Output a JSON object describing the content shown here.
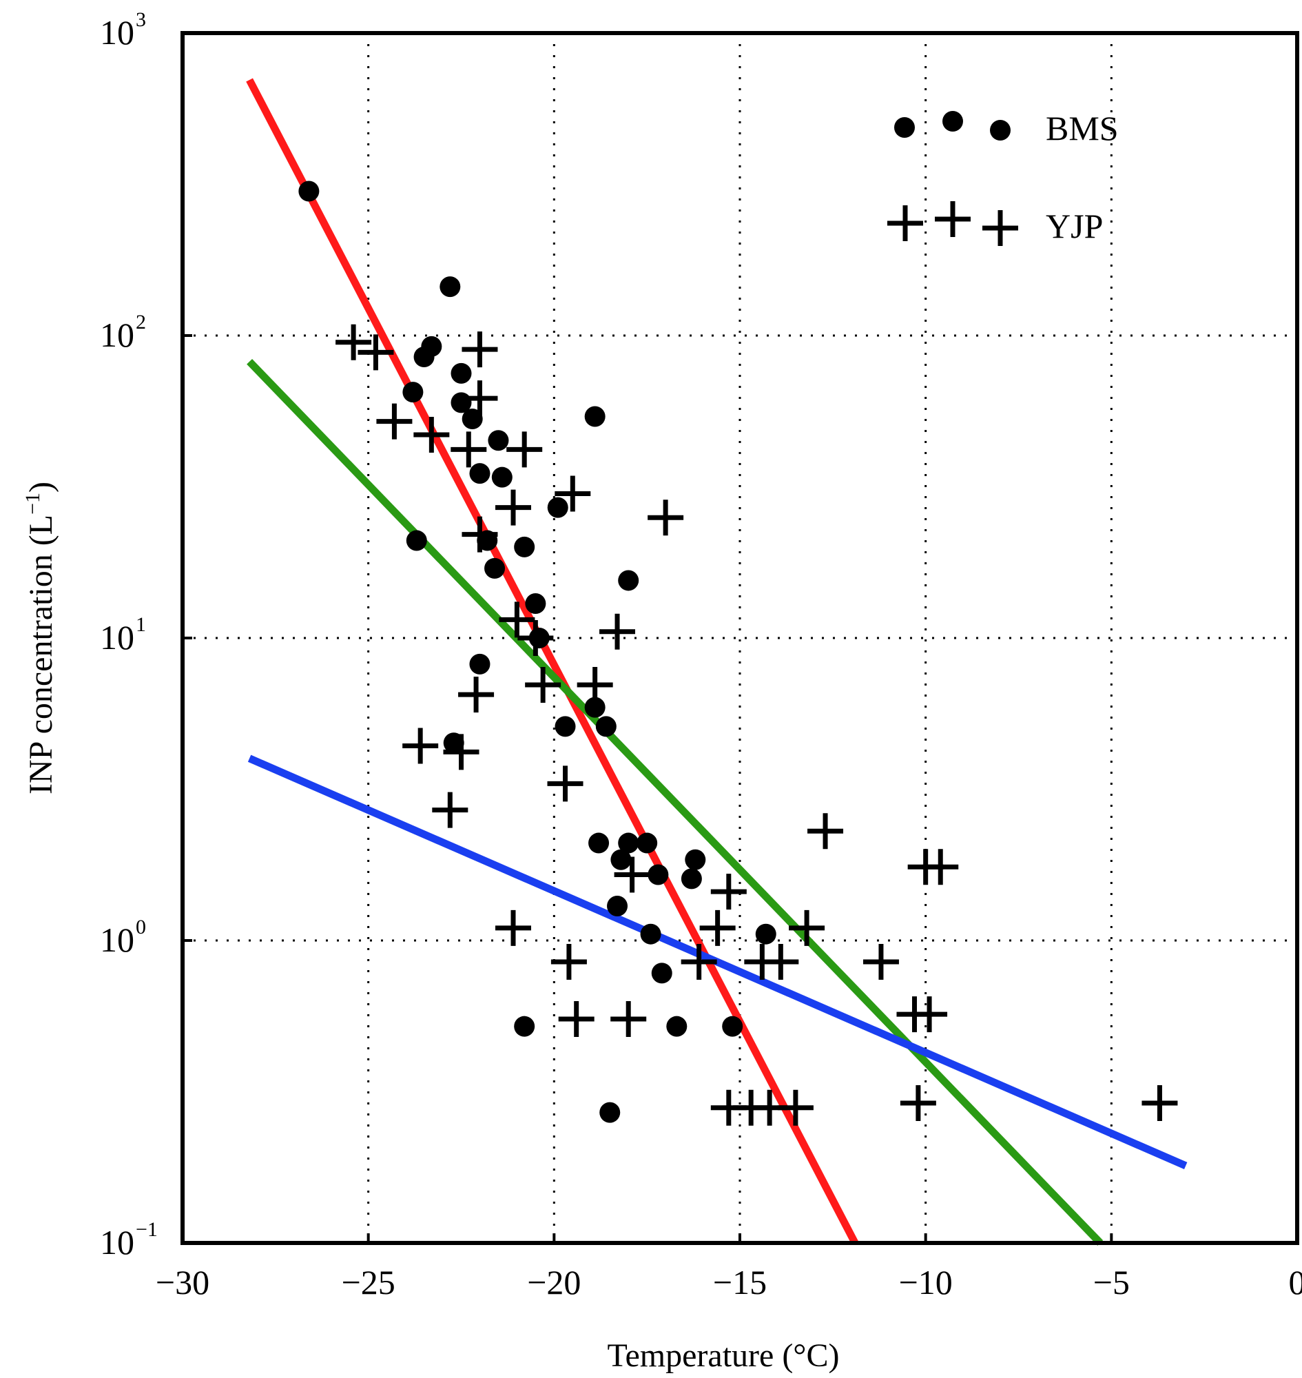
{
  "chart_data": {
    "type": "scatter",
    "xlabel": "Temperature (°C)",
    "ylabel": "INP concentration (L⁻¹)",
    "ylabel_base": "INP concentration (L",
    "ylabel_exp": "−1",
    "ylabel_close": ")",
    "xscale": "linear",
    "yscale": "log",
    "xlim": [
      -30,
      0
    ],
    "ylim": [
      0.1,
      1000
    ],
    "xticks": [
      -30,
      -25,
      -20,
      -15,
      -10,
      -5,
      0
    ],
    "xtick_labels": [
      "−30",
      "−25",
      "−20",
      "−15",
      "−10",
      "−5",
      "0"
    ],
    "yticks": [
      {
        "value": 0.1,
        "base": "10",
        "exp": "−1"
      },
      {
        "value": 1,
        "base": "10",
        "exp": "0"
      },
      {
        "value": 10,
        "base": "10",
        "exp": "1"
      },
      {
        "value": 100,
        "base": "10",
        "exp": "2"
      },
      {
        "value": 1000,
        "base": "10",
        "exp": "3"
      }
    ],
    "grid": "dotted",
    "legend_position": "top-right",
    "series": [
      {
        "name": "BMS",
        "marker": "circle",
        "color": "#000000",
        "points": [
          [
            -26.6,
            300
          ],
          [
            -22.8,
            145
          ],
          [
            -23.3,
            92
          ],
          [
            -23.5,
            85
          ],
          [
            -22.5,
            75
          ],
          [
            -23.8,
            65
          ],
          [
            -22.5,
            60
          ],
          [
            -22.2,
            53
          ],
          [
            -21.5,
            45
          ],
          [
            -22.0,
            35
          ],
          [
            -21.4,
            34
          ],
          [
            -19.9,
            27
          ],
          [
            -21.8,
            21
          ],
          [
            -23.7,
            21
          ],
          [
            -20.8,
            20
          ],
          [
            -21.6,
            17
          ],
          [
            -18.9,
            54
          ],
          [
            -18.0,
            15.5
          ],
          [
            -20.5,
            13
          ],
          [
            -22.0,
            8.2
          ],
          [
            -20.4,
            10
          ],
          [
            -18.9,
            5.9
          ],
          [
            -19.7,
            5.1
          ],
          [
            -18.6,
            5.1
          ],
          [
            -22.7,
            4.5
          ],
          [
            -18.8,
            2.1
          ],
          [
            -18.0,
            2.1
          ],
          [
            -17.5,
            2.1
          ],
          [
            -18.2,
            1.85
          ],
          [
            -16.2,
            1.85
          ],
          [
            -17.2,
            1.65
          ],
          [
            -16.3,
            1.6
          ],
          [
            -18.3,
            1.3
          ],
          [
            -17.4,
            1.05
          ],
          [
            -14.3,
            1.05
          ],
          [
            -17.1,
            0.78
          ],
          [
            -20.8,
            0.52
          ],
          [
            -16.7,
            0.52
          ],
          [
            -15.2,
            0.52
          ],
          [
            -18.5,
            0.27
          ]
        ]
      },
      {
        "name": "YJP",
        "marker": "plus",
        "color": "#000000",
        "points": [
          [
            -25.4,
            95
          ],
          [
            -24.8,
            88
          ],
          [
            -22.0,
            90
          ],
          [
            -22.0,
            62
          ],
          [
            -24.3,
            52
          ],
          [
            -23.3,
            47
          ],
          [
            -22.3,
            42
          ],
          [
            -20.8,
            42
          ],
          [
            -19.5,
            30
          ],
          [
            -21.1,
            27
          ],
          [
            -17.0,
            25
          ],
          [
            -22.0,
            22
          ],
          [
            -21.0,
            11.5
          ],
          [
            -20.5,
            10
          ],
          [
            -18.3,
            10.5
          ],
          [
            -20.3,
            7.0
          ],
          [
            -18.9,
            7.0
          ],
          [
            -22.1,
            6.5
          ],
          [
            -23.6,
            4.4
          ],
          [
            -22.5,
            4.2
          ],
          [
            -19.7,
            3.3
          ],
          [
            -22.8,
            2.7
          ],
          [
            -12.7,
            2.3
          ],
          [
            -10.0,
            1.75
          ],
          [
            -9.6,
            1.75
          ],
          [
            -17.9,
            1.65
          ],
          [
            -15.3,
            1.45
          ],
          [
            -15.6,
            1.1
          ],
          [
            -13.2,
            1.1
          ],
          [
            -21.1,
            1.1
          ],
          [
            -19.6,
            0.85
          ],
          [
            -16.1,
            0.85
          ],
          [
            -14.4,
            0.85
          ],
          [
            -13.9,
            0.85
          ],
          [
            -11.2,
            0.85
          ],
          [
            -19.4,
            0.55
          ],
          [
            -18.0,
            0.55
          ],
          [
            -10.3,
            0.57
          ],
          [
            -9.9,
            0.57
          ],
          [
            -15.3,
            0.28
          ],
          [
            -14.7,
            0.28
          ],
          [
            -14.2,
            0.28
          ],
          [
            -13.5,
            0.28
          ],
          [
            -10.2,
            0.29
          ],
          [
            -3.7,
            0.29
          ]
        ]
      }
    ],
    "fit_lines": [
      {
        "name": "red-fit",
        "color": "#ff1a1a",
        "x": [
          -28.2,
          -11.9
        ],
        "y": [
          700,
          0.1
        ]
      },
      {
        "name": "green-fit",
        "color": "#2a9a14",
        "x": [
          -28.2,
          -5.3
        ],
        "y": [
          82,
          0.1
        ]
      },
      {
        "name": "blue-fit",
        "color": "#1a3ff0",
        "x": [
          -28.2,
          -3.0
        ],
        "y": [
          4.0,
          0.18
        ]
      }
    ]
  },
  "legend": {
    "items": [
      {
        "label": "BMS",
        "marker": "circle"
      },
      {
        "label": "YJP",
        "marker": "plus"
      }
    ]
  }
}
